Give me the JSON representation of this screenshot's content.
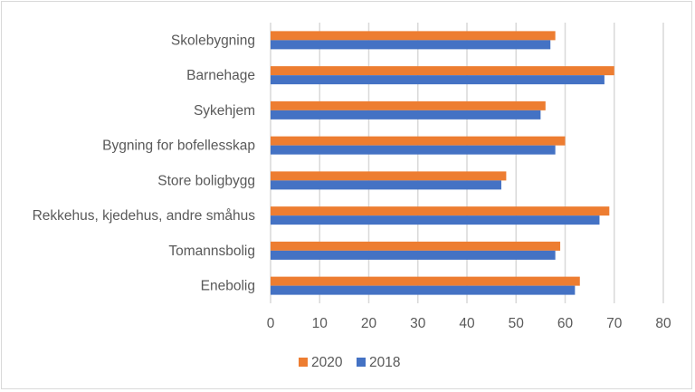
{
  "chart_data": {
    "type": "bar",
    "orientation": "horizontal",
    "categories": [
      "Skolebygning",
      "Barnehage",
      "Sykehjem",
      "Bygning for bofellesskap",
      "Store boligbygg",
      "Rekkehus, kjedehus, andre småhus",
      "Tomannsbolig",
      "Enebolig"
    ],
    "series": [
      {
        "name": "2020",
        "color": "#ED7D31",
        "values": [
          58,
          70,
          56,
          60,
          48,
          69,
          59,
          63
        ]
      },
      {
        "name": "2018",
        "color": "#4472C4",
        "values": [
          57,
          68,
          55,
          58,
          47,
          67,
          58,
          62
        ]
      }
    ],
    "xlim": [
      0,
      80
    ],
    "xticks": [
      "0",
      "10",
      "20",
      "30",
      "40",
      "50",
      "60",
      "70",
      "80"
    ],
    "grid": true,
    "legend": "bottom"
  }
}
